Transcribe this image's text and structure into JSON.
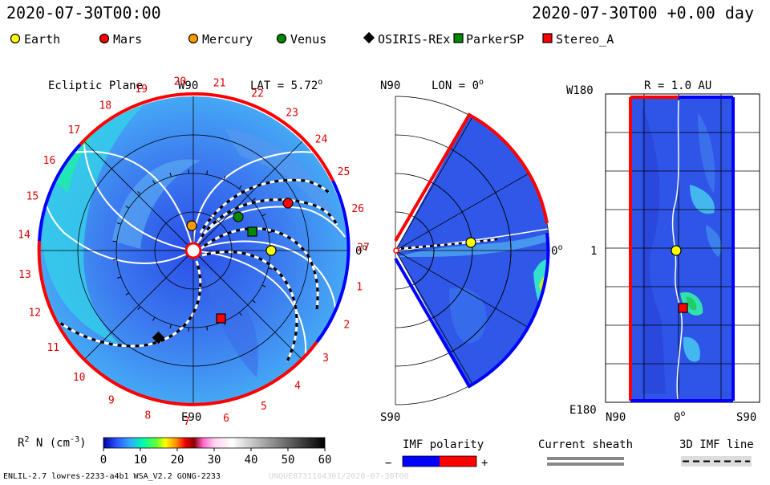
{
  "header": {
    "timestamp_left": "2020-07-30T00:00",
    "timestamp_right": "2020-07-30T00 +0.00 day"
  },
  "legend": {
    "items": [
      {
        "label": "Earth",
        "color": "#ffff00",
        "shape": "circle"
      },
      {
        "label": "Mars",
        "color": "#ff0000",
        "shape": "circle"
      },
      {
        "label": "Mercury",
        "color": "#ff9900",
        "shape": "circle"
      },
      {
        "label": "Venus",
        "color": "#008800",
        "shape": "circle"
      },
      {
        "label": "OSIRIS-REx",
        "color": "#000000",
        "shape": "diamond"
      },
      {
        "label": "ParkerSP",
        "color": "#008800",
        "shape": "square"
      },
      {
        "label": "Stereo_A",
        "color": "#ff0000",
        "shape": "square"
      }
    ]
  },
  "ecliptic": {
    "title": "Ecliptic Plane",
    "w_label": "W90",
    "e_label": "E90",
    "zero_label": "0",
    "zero_sup": "o",
    "lat_prefix": "LAT = 5.72",
    "lat_sup": "o",
    "carrington_numbers": [
      "20",
      "21",
      "22",
      "23",
      "24",
      "25",
      "26",
      "27",
      "1",
      "2",
      "3",
      "4",
      "5",
      "6",
      "7",
      "8",
      "9",
      "10",
      "11",
      "12",
      "13",
      "14",
      "15",
      "16",
      "17",
      "18",
      "19"
    ],
    "number_color": "#dd0000"
  },
  "meridional": {
    "n_label": "N90",
    "s_label": "S90",
    "lon_prefix": "LON = 0",
    "lon_sup": "o",
    "zero_label": "0",
    "zero_sup": "o"
  },
  "radial": {
    "title": "R = 1.0 AU",
    "w_label": "W180",
    "e_label": "E180",
    "mid_label": "1",
    "bottom_left": "N90",
    "bottom_mid": "0",
    "bottom_mid_sup": "o",
    "bottom_right": "S90"
  },
  "colorbar": {
    "label_prefix": "R",
    "label_sup1": "2",
    "label_mid": " N (cm",
    "label_sup2": "-3",
    "label_suffix": ")",
    "ticks": [
      "0",
      "10",
      "20",
      "30",
      "40",
      "50",
      "60"
    ]
  },
  "imf_polarity": {
    "title": "IMF polarity",
    "minus": "−",
    "plus": "+",
    "neg_color": "#0000ff",
    "pos_color": "#ff0000"
  },
  "current_sheath": {
    "title": "Current sheath"
  },
  "imf_line": {
    "title": "3D IMF line"
  },
  "footer": {
    "model": "ENLIL-2.7 lowres-2233-a4b1 WSA_V2.2 GONG-2233",
    "watermark": "UNQUE0731104301/2020-07-30T00"
  }
}
